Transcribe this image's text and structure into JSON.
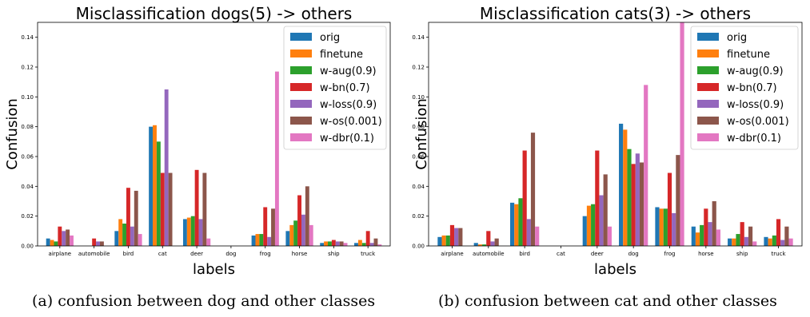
{
  "chart_data": [
    {
      "type": "bar",
      "title": "Misclassification dogs(5) -> others",
      "xlabel": "labels",
      "ylabel": "Confusion",
      "ylim": [
        0,
        0.15
      ],
      "yticks": [
        "0.00",
        "0.02",
        "0.04",
        "0.06",
        "0.08",
        "0.10",
        "0.12",
        "0.14"
      ],
      "legend_position": "top-right",
      "grid": false,
      "categories": [
        "airplane",
        "automobile",
        "bird",
        "cat",
        "deer",
        "dog",
        "frog",
        "horse",
        "ship",
        "truck"
      ],
      "series": [
        {
          "name": "orig",
          "color": "#1f77b4",
          "values": [
            0.005,
            0.0,
            0.01,
            0.08,
            0.018,
            0.0,
            0.007,
            0.01,
            0.002,
            0.002
          ]
        },
        {
          "name": "finetune",
          "color": "#ff7f0e",
          "values": [
            0.004,
            0.0,
            0.018,
            0.081,
            0.019,
            0.0,
            0.008,
            0.014,
            0.003,
            0.004
          ]
        },
        {
          "name": "w-aug(0.9)",
          "color": "#2ca02c",
          "values": [
            0.003,
            0.0,
            0.015,
            0.07,
            0.02,
            0.0,
            0.008,
            0.017,
            0.003,
            0.002
          ]
        },
        {
          "name": "w-bn(0.7)",
          "color": "#d62728",
          "values": [
            0.013,
            0.005,
            0.039,
            0.049,
            0.051,
            0.0,
            0.026,
            0.034,
            0.004,
            0.01
          ]
        },
        {
          "name": "w-loss(0.9)",
          "color": "#9467bd",
          "values": [
            0.01,
            0.003,
            0.013,
            0.105,
            0.018,
            0.0,
            0.006,
            0.021,
            0.003,
            0.002
          ]
        },
        {
          "name": "w-os(0.001)",
          "color": "#8c564b",
          "values": [
            0.011,
            0.003,
            0.037,
            0.049,
            0.049,
            0.0,
            0.025,
            0.04,
            0.003,
            0.005
          ]
        },
        {
          "name": "w-dbr(0.1)",
          "color": "#e377c2",
          "values": [
            0.007,
            0.0,
            0.008,
            0.0,
            0.005,
            0.0,
            0.117,
            0.014,
            0.002,
            0.001
          ]
        }
      ]
    },
    {
      "type": "bar",
      "title": "Misclassification cats(3) -> others",
      "xlabel": "labels",
      "ylabel": "Confusion",
      "ylim": [
        0,
        0.15
      ],
      "yticks": [
        "0.00",
        "0.02",
        "0.04",
        "0.06",
        "0.08",
        "0.10",
        "0.12",
        "0.14"
      ],
      "legend_position": "top-right",
      "grid": false,
      "categories": [
        "airplane",
        "automobile",
        "bird",
        "cat",
        "deer",
        "dog",
        "frog",
        "horse",
        "ship",
        "truck"
      ],
      "series": [
        {
          "name": "orig",
          "color": "#1f77b4",
          "values": [
            0.006,
            0.002,
            0.029,
            0.0,
            0.02,
            0.082,
            0.026,
            0.013,
            0.005,
            0.006
          ]
        },
        {
          "name": "finetune",
          "color": "#ff7f0e",
          "values": [
            0.007,
            0.001,
            0.028,
            0.0,
            0.027,
            0.078,
            0.025,
            0.009,
            0.005,
            0.005
          ]
        },
        {
          "name": "w-aug(0.9)",
          "color": "#2ca02c",
          "values": [
            0.007,
            0.001,
            0.032,
            0.0,
            0.028,
            0.065,
            0.025,
            0.014,
            0.008,
            0.007
          ]
        },
        {
          "name": "w-bn(0.7)",
          "color": "#d62728",
          "values": [
            0.014,
            0.01,
            0.064,
            0.0,
            0.064,
            0.055,
            0.049,
            0.025,
            0.016,
            0.018
          ]
        },
        {
          "name": "w-loss(0.9)",
          "color": "#9467bd",
          "values": [
            0.012,
            0.003,
            0.018,
            0.0,
            0.034,
            0.062,
            0.022,
            0.016,
            0.006,
            0.004
          ]
        },
        {
          "name": "w-os(0.001)",
          "color": "#8c564b",
          "values": [
            0.012,
            0.005,
            0.076,
            0.0,
            0.048,
            0.056,
            0.061,
            0.03,
            0.013,
            0.013
          ]
        },
        {
          "name": "w-dbr(0.1)",
          "color": "#e377c2",
          "values": [
            0.0,
            0.0,
            0.013,
            0.0,
            0.013,
            0.108,
            0.15,
            0.011,
            0.003,
            0.005
          ]
        }
      ]
    }
  ],
  "captions": {
    "a": "(a) confusion between dog and other classes",
    "b": "(b) confusion between cat and other classes"
  }
}
